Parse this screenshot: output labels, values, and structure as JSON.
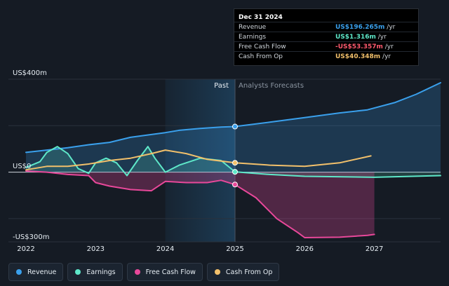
{
  "chart_data": {
    "type": "line",
    "y_unit_labels": {
      "top": "US$400m",
      "zero": "US$0",
      "bottom": "-US$300m"
    },
    "ylim": [
      -300,
      400
    ],
    "xlim": [
      2022.0,
      2027.95
    ],
    "x_ticks": [
      "2022",
      "2023",
      "2024",
      "2025",
      "2026",
      "2027"
    ],
    "divider_x": 2025.0,
    "past_label": "Past",
    "forecast_label": "Analysts Forecasts",
    "grid": true,
    "legend_position": "bottom-left",
    "series": [
      {
        "name": "Revenue",
        "color": "#3aa0ec",
        "x": [
          2022.0,
          2022.3,
          2022.6,
          2022.9,
          2023.2,
          2023.5,
          2023.8,
          2024.0,
          2024.2,
          2024.5,
          2024.8,
          2025.0,
          2025.5,
          2026.0,
          2026.5,
          2026.9,
          2027.3,
          2027.6,
          2027.95
        ],
        "values": [
          85,
          95,
          105,
          118,
          128,
          150,
          162,
          170,
          180,
          188,
          194,
          196.265,
          215,
          235,
          255,
          268,
          300,
          335,
          385
        ],
        "forecast_from": 2025.0,
        "area": true
      },
      {
        "name": "Earnings",
        "color": "#5ee8c9",
        "x": [
          2022.0,
          2022.2,
          2022.3,
          2022.45,
          2022.6,
          2022.75,
          2022.9,
          2023.0,
          2023.15,
          2023.3,
          2023.45,
          2023.6,
          2023.75,
          2023.85,
          2024.0,
          2024.2,
          2024.5,
          2024.8,
          2025.0,
          2025.5,
          2026.0,
          2027.0,
          2027.95
        ],
        "values": [
          20,
          45,
          85,
          110,
          80,
          15,
          -5,
          40,
          60,
          40,
          -15,
          50,
          110,
          60,
          0,
          30,
          60,
          50,
          1.316,
          -10,
          -18,
          -22,
          -15
        ],
        "forecast_from": 2025.0,
        "area": true
      },
      {
        "name": "Free Cash Flow",
        "color": "#e8489a",
        "x": [
          2022.0,
          2022.3,
          2022.6,
          2022.9,
          2023.0,
          2023.2,
          2023.5,
          2023.8,
          2024.0,
          2024.3,
          2024.6,
          2024.8,
          2025.0,
          2025.3,
          2025.6,
          2025.9,
          2026.0,
          2026.5,
          2026.9,
          2027.0
        ],
        "values": [
          5,
          0,
          -10,
          -15,
          -45,
          -60,
          -75,
          -80,
          -40,
          -45,
          -45,
          -35,
          -53.357,
          -110,
          -200,
          -260,
          -282,
          -280,
          -272,
          -268
        ],
        "forecast_from": 2025.0,
        "area": true
      },
      {
        "name": "Cash From Op",
        "color": "#f2c06b",
        "x": [
          2022.0,
          2022.3,
          2022.6,
          2022.9,
          2023.2,
          2023.5,
          2023.8,
          2024.0,
          2024.3,
          2024.6,
          2024.8,
          2025.0,
          2025.5,
          2026.0,
          2026.5,
          2026.95
        ],
        "values": [
          10,
          25,
          25,
          35,
          50,
          60,
          80,
          95,
          80,
          55,
          48,
          40.348,
          30,
          25,
          40,
          70
        ],
        "forecast_from": 2025.0,
        "area": false
      }
    ]
  },
  "tooltip": {
    "date": "Dec 31 2024",
    "rows": [
      {
        "label": "Revenue",
        "value": "US$196.265m",
        "unit": " /yr",
        "color": "#3aa0ec"
      },
      {
        "label": "Earnings",
        "value": "US$1.316m",
        "unit": " /yr",
        "color": "#5ee8c9"
      },
      {
        "label": "Free Cash Flow",
        "value": "-US$53.357m",
        "unit": " /yr",
        "color": "#ff5a6e"
      },
      {
        "label": "Cash From Op",
        "value": "US$40.348m",
        "unit": " /yr",
        "color": "#f2c06b"
      }
    ]
  },
  "legend": [
    {
      "label": "Revenue",
      "color": "#3aa0ec"
    },
    {
      "label": "Earnings",
      "color": "#5ee8c9"
    },
    {
      "label": "Free Cash Flow",
      "color": "#e8489a"
    },
    {
      "label": "Cash From Op",
      "color": "#f2c06b"
    }
  ]
}
